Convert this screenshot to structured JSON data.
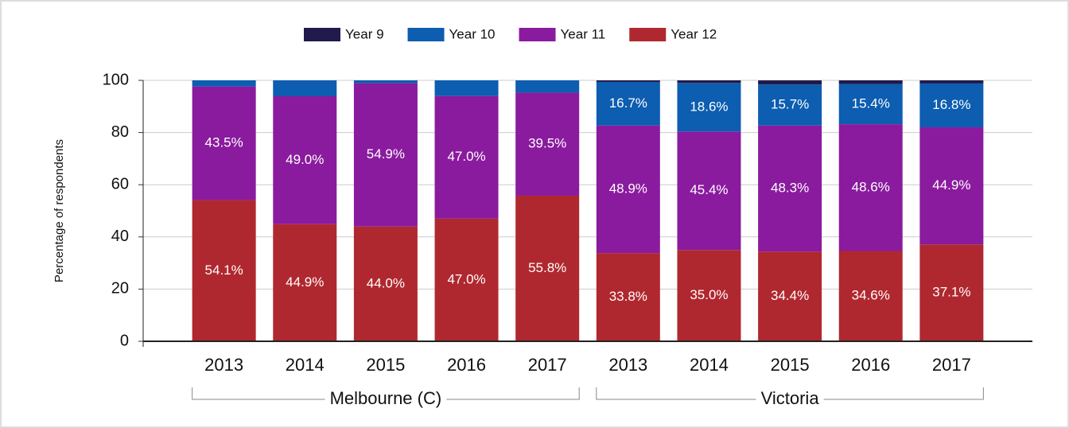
{
  "chart_data": {
    "type": "stacked_bar",
    "y_label": "Percentage of respondents",
    "categories": [
      "2013",
      "2014",
      "2015",
      "2016",
      "2017",
      "2013",
      "2014",
      "2015",
      "2016",
      "2017"
    ],
    "groups": [
      "Melbourne (C)",
      "Victoria"
    ],
    "series": [
      {
        "name": "Year 9",
        "color": "#211a4c",
        "values": [
          0,
          0,
          0,
          0,
          0,
          0.6,
          1.0,
          1.6,
          1.4,
          1.2
        ],
        "value_labels": [
          null,
          null,
          null,
          null,
          null,
          null,
          null,
          null,
          null,
          null
        ]
      },
      {
        "name": "Year 10",
        "color": "#0d5db0",
        "values": [
          2.4,
          6.1,
          1.1,
          6.0,
          4.7,
          16.7,
          18.6,
          15.7,
          15.4,
          16.8
        ],
        "value_labels": [
          null,
          null,
          null,
          null,
          null,
          "16.7%",
          "18.6%",
          "15.7%",
          "15.4%",
          "16.8%"
        ]
      },
      {
        "name": "Year 11",
        "color": "#8a1b9e",
        "values": [
          43.5,
          49.0,
          54.9,
          47.0,
          39.5,
          48.9,
          45.4,
          48.3,
          48.6,
          44.9
        ],
        "value_labels": [
          "43.5%",
          "49.0%",
          "54.9%",
          "47.0%",
          "39.5%",
          "48.9%",
          "45.4%",
          "48.3%",
          "48.6%",
          "44.9%"
        ]
      },
      {
        "name": "Year 12",
        "color": "#b0282f",
        "values": [
          54.1,
          44.9,
          44.0,
          47.0,
          55.8,
          33.8,
          35.0,
          34.4,
          34.6,
          37.1
        ],
        "value_labels": [
          "54.1%",
          "44.9%",
          "44.0%",
          "47.0%",
          "55.8%",
          "33.8%",
          "35.0%",
          "34.4%",
          "34.6%",
          "37.1%"
        ]
      }
    ],
    "ylim": [
      0,
      100
    ],
    "yticks": [
      0,
      20,
      40,
      60,
      80,
      100
    ],
    "grid": true,
    "legend": "top"
  }
}
